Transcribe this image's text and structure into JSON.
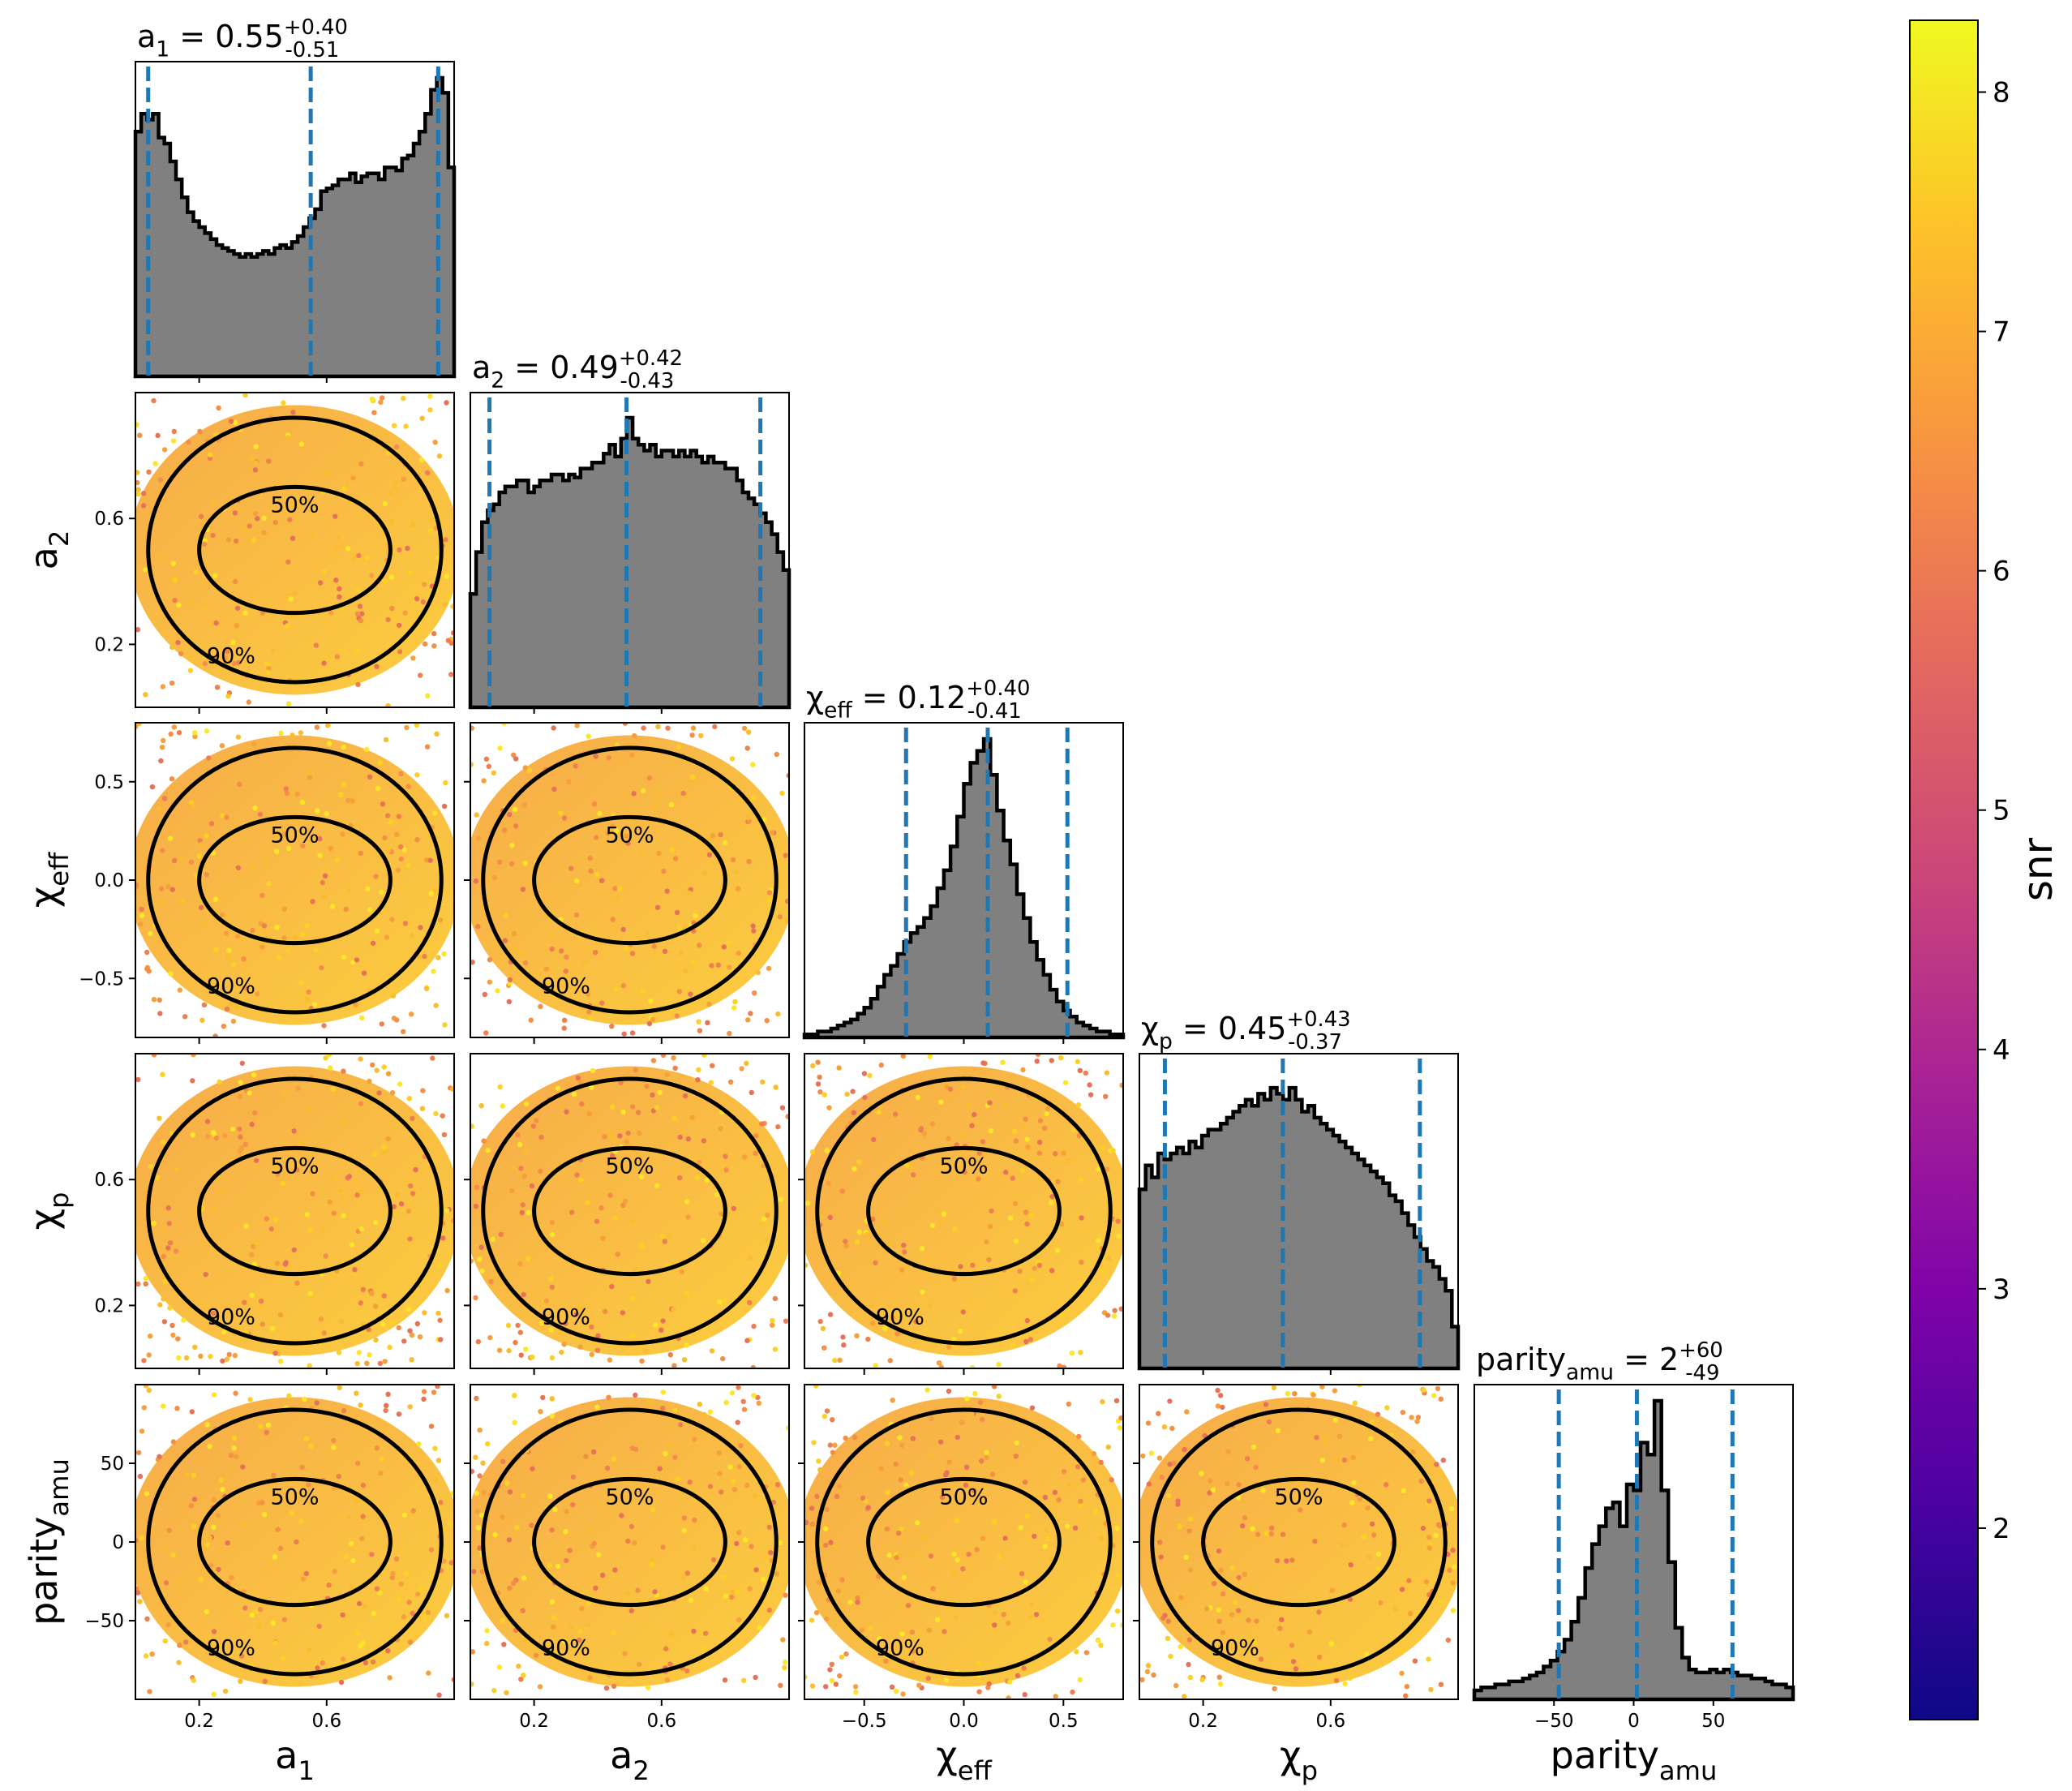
{
  "chart_data": {
    "type": "corner",
    "parameters": [
      {
        "key": "a1",
        "title": "a_1 = 0.55^{+0.40}_{-0.51}",
        "xlabel": "a_1",
        "range": [
          0.0,
          1.0
        ],
        "median": 0.55,
        "lower": 0.04,
        "upper": 0.95,
        "ticks": [
          0.2,
          0.6
        ],
        "tick_labels": [
          "0.2",
          "0.6"
        ],
        "hist": [
          0.82,
          0.88,
          0.86,
          0.88,
          0.8,
          0.78,
          0.72,
          0.66,
          0.6,
          0.55,
          0.52,
          0.5,
          0.48,
          0.46,
          0.44,
          0.43,
          0.42,
          0.41,
          0.4,
          0.41,
          0.4,
          0.41,
          0.42,
          0.41,
          0.43,
          0.44,
          0.43,
          0.45,
          0.47,
          0.5,
          0.53,
          0.56,
          0.62,
          0.63,
          0.64,
          0.66,
          0.66,
          0.68,
          0.65,
          0.67,
          0.68,
          0.68,
          0.66,
          0.7,
          0.7,
          0.69,
          0.73,
          0.74,
          0.78,
          0.82,
          0.88,
          0.96,
          1.0,
          0.95,
          0.7
        ]
      },
      {
        "key": "a2",
        "title": "a_2 = 0.49^{+0.42}_{-0.43}",
        "xlabel": "a_2",
        "range": [
          0.0,
          1.0
        ],
        "median": 0.49,
        "lower": 0.06,
        "upper": 0.91,
        "ticks": [
          0.2,
          0.6
        ],
        "tick_labels": [
          "0.2",
          "0.6"
        ],
        "hist": [
          0.38,
          0.52,
          0.62,
          0.66,
          0.68,
          0.72,
          0.74,
          0.74,
          0.76,
          0.76,
          0.72,
          0.74,
          0.76,
          0.76,
          0.78,
          0.78,
          0.76,
          0.78,
          0.77,
          0.8,
          0.8,
          0.82,
          0.82,
          0.85,
          0.88,
          0.84,
          0.9,
          0.97,
          0.9,
          0.88,
          0.86,
          0.88,
          0.84,
          0.86,
          0.86,
          0.84,
          0.86,
          0.84,
          0.86,
          0.84,
          0.82,
          0.84,
          0.82,
          0.82,
          0.8,
          0.8,
          0.76,
          0.72,
          0.7,
          0.68,
          0.65,
          0.62,
          0.58,
          0.52,
          0.46
        ]
      },
      {
        "key": "chi_eff",
        "title": "χ_eff = 0.12^{+0.40}_{-0.41}",
        "xlabel": "χ_eff",
        "range": [
          -0.8,
          0.8
        ],
        "median": 0.12,
        "lower": -0.29,
        "upper": 0.52,
        "ticks": [
          -0.5,
          0.0,
          0.5
        ],
        "tick_labels": [
          "−0.5",
          "0.0",
          "0.5"
        ],
        "hist": [
          0.01,
          0.01,
          0.02,
          0.02,
          0.03,
          0.04,
          0.05,
          0.06,
          0.08,
          0.1,
          0.13,
          0.17,
          0.21,
          0.24,
          0.28,
          0.32,
          0.35,
          0.37,
          0.4,
          0.44,
          0.5,
          0.56,
          0.64,
          0.74,
          0.85,
          0.92,
          0.96,
          1.0,
          0.88,
          0.76,
          0.66,
          0.58,
          0.48,
          0.4,
          0.32,
          0.26,
          0.21,
          0.16,
          0.12,
          0.09,
          0.07,
          0.05,
          0.04,
          0.03,
          0.02,
          0.02,
          0.01,
          0.01
        ]
      },
      {
        "key": "chi_p",
        "title": "χ_p = 0.45^{+0.43}_{-0.37}",
        "xlabel": "χ_p",
        "range": [
          0.0,
          1.0
        ],
        "median": 0.45,
        "lower": 0.08,
        "upper": 0.88,
        "ticks": [
          0.2,
          0.6
        ],
        "tick_labels": [
          "0.2",
          "0.6"
        ],
        "hist": [
          0.6,
          0.68,
          0.64,
          0.72,
          0.7,
          0.72,
          0.74,
          0.72,
          0.76,
          0.74,
          0.78,
          0.8,
          0.8,
          0.82,
          0.84,
          0.86,
          0.88,
          0.9,
          0.88,
          0.92,
          0.9,
          0.94,
          0.92,
          0.9,
          0.94,
          0.9,
          0.86,
          0.88,
          0.84,
          0.82,
          0.8,
          0.78,
          0.76,
          0.74,
          0.72,
          0.7,
          0.68,
          0.66,
          0.64,
          0.62,
          0.58,
          0.56,
          0.52,
          0.48,
          0.44,
          0.4,
          0.36,
          0.34,
          0.3,
          0.26,
          0.14
        ]
      },
      {
        "key": "parity_amu",
        "title": "parity_amu = 2^{+60}_{-49}",
        "xlabel": "parity_amu",
        "range": [
          -100,
          100
        ],
        "median": 2,
        "lower": -47,
        "upper": 62,
        "ticks": [
          -50,
          0,
          50
        ],
        "tick_labels": [
          "−50",
          "0",
          "50"
        ],
        "hist": [
          0.03,
          0.04,
          0.04,
          0.05,
          0.05,
          0.06,
          0.06,
          0.07,
          0.08,
          0.09,
          0.11,
          0.13,
          0.16,
          0.2,
          0.26,
          0.34,
          0.44,
          0.52,
          0.58,
          0.64,
          0.66,
          0.58,
          0.72,
          0.7,
          0.86,
          0.82,
          1.0,
          0.7,
          0.46,
          0.24,
          0.14,
          0.1,
          0.09,
          0.09,
          0.1,
          0.09,
          0.1,
          0.09,
          0.08,
          0.08,
          0.07,
          0.07,
          0.06,
          0.05,
          0.05,
          0.04
        ]
      }
    ],
    "axis_labels_left": [
      {
        "row": 1,
        "text": "a_2",
        "ticks": [
          0.2,
          0.6
        ],
        "tick_labels": [
          "0.2",
          "0.6"
        ]
      },
      {
        "row": 2,
        "text": "χ_eff",
        "ticks": [
          -0.5,
          0.0,
          0.5
        ],
        "tick_labels": [
          "−0.5",
          "0.0",
          "0.5"
        ]
      },
      {
        "row": 3,
        "text": "χ_p",
        "ticks": [
          0.2,
          0.6
        ],
        "tick_labels": [
          "0.2",
          "0.6"
        ]
      },
      {
        "row": 4,
        "text": "parity_amu",
        "ticks": [
          -50,
          0,
          50
        ],
        "tick_labels": [
          "−50",
          "0",
          "50"
        ]
      }
    ],
    "contour_levels": [
      "50%",
      "90%"
    ],
    "colorbar": {
      "label": "snr",
      "range": [
        1.2,
        8.3
      ],
      "ticks": [
        2,
        3,
        4,
        5,
        6,
        7,
        8
      ],
      "tick_labels": [
        "2",
        "3",
        "4",
        "5",
        "6",
        "7",
        "8"
      ],
      "colormap": "plasma"
    },
    "hist_color": "#808080",
    "quantile_line_color": "#1f77b4",
    "grid": false
  }
}
